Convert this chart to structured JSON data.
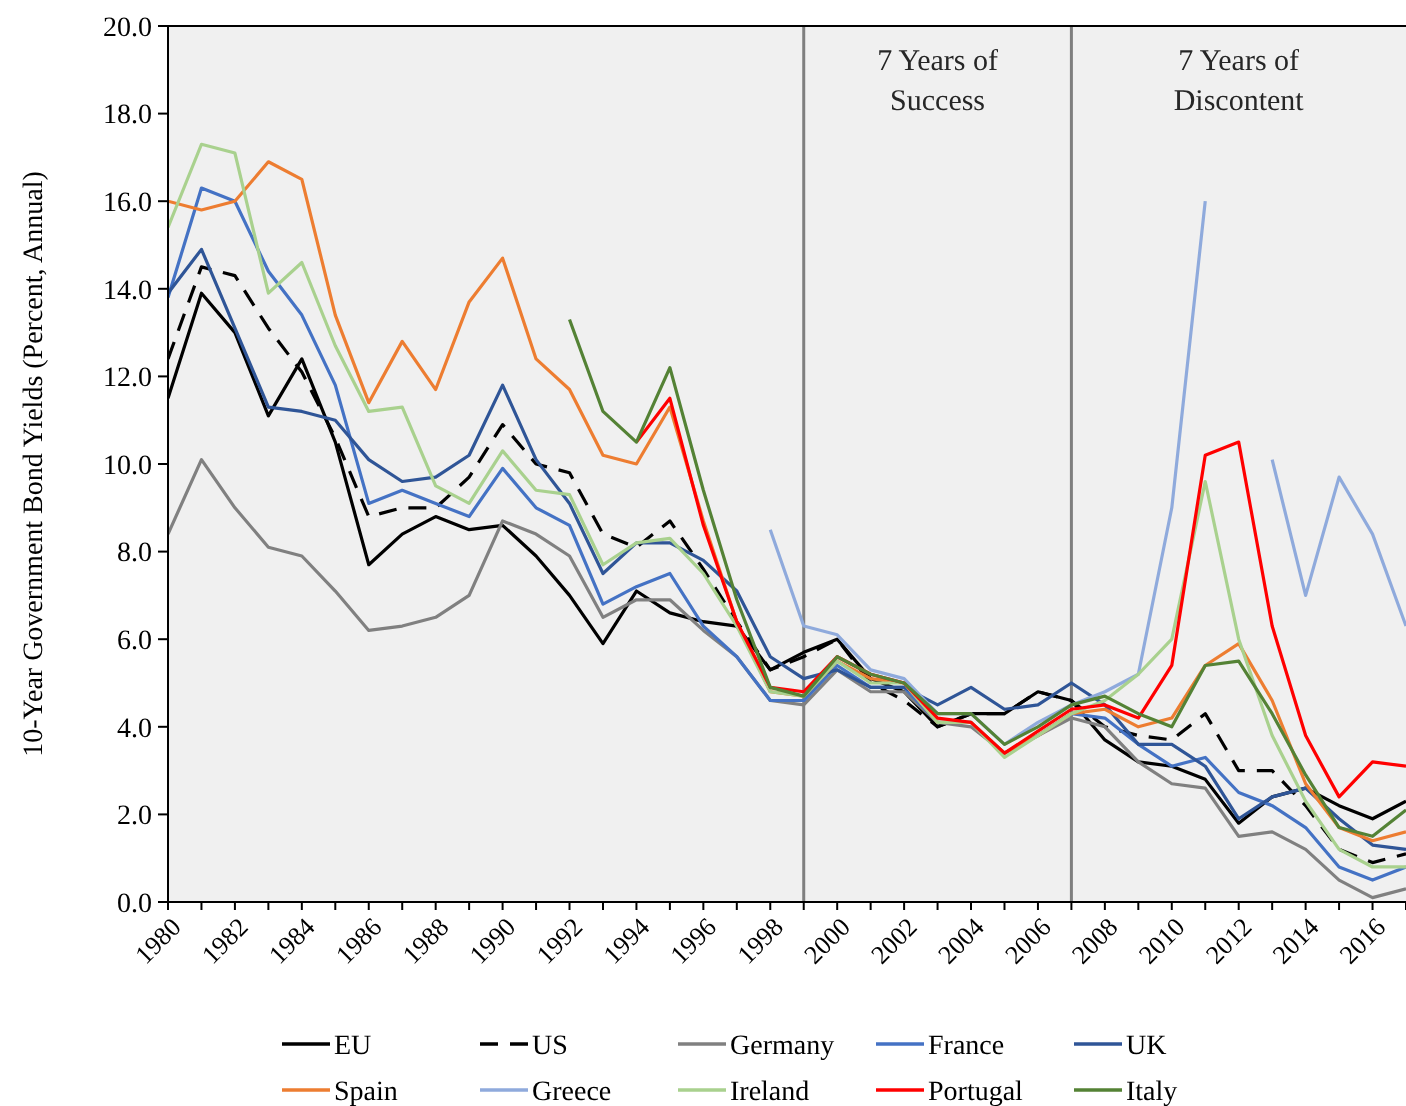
{
  "chart_data": {
    "type": "line",
    "ylabel": "10-Year Government Bond Yields (Percent, Annual)",
    "x": [
      1980,
      1981,
      1982,
      1983,
      1984,
      1985,
      1986,
      1987,
      1988,
      1989,
      1990,
      1991,
      1992,
      1993,
      1994,
      1995,
      1996,
      1997,
      1998,
      1999,
      2000,
      2001,
      2002,
      2003,
      2004,
      2005,
      2006,
      2007,
      2008,
      2009,
      2010,
      2011,
      2012,
      2013,
      2014,
      2015,
      2016,
      2017
    ],
    "xlim": [
      1980,
      2017
    ],
    "xticks": [
      1980,
      1982,
      1984,
      1986,
      1988,
      1990,
      1992,
      1994,
      1996,
      1998,
      2000,
      2002,
      2004,
      2006,
      2008,
      2010,
      2012,
      2014,
      2016
    ],
    "ylim": [
      0,
      20
    ],
    "yticks": [
      {
        "value": 0,
        "label": "0.0"
      },
      {
        "value": 2,
        "label": "2.0"
      },
      {
        "value": 4,
        "label": "4.0"
      },
      {
        "value": 6,
        "label": "6.0"
      },
      {
        "value": 8,
        "label": "8.0"
      },
      {
        "value": 10,
        "label": "10.0"
      },
      {
        "value": 12,
        "label": "12.0"
      },
      {
        "value": 14,
        "label": "14.0"
      },
      {
        "value": 16,
        "label": "16.0"
      },
      {
        "value": 18,
        "label": "18.0"
      },
      {
        "value": 20,
        "label": "20.0"
      }
    ],
    "grid": false,
    "legend": "bottom",
    "ref_lines": [
      {
        "axis": "x",
        "value": 1999,
        "color": "#7f7f7f"
      },
      {
        "axis": "x",
        "value": 2007,
        "color": "#7f7f7f"
      }
    ],
    "annotations": [
      "7 Years of Success",
      "7 Years of Discontent"
    ],
    "series": [
      {
        "name": "EU",
        "color": "#000000",
        "line_style": "solid",
        "values": [
          11.5,
          13.9,
          13.0,
          11.1,
          12.4,
          10.5,
          7.7,
          8.4,
          8.8,
          8.5,
          8.6,
          7.9,
          7.0,
          5.9,
          7.1,
          6.6,
          6.4,
          6.3,
          5.3,
          5.7,
          6.0,
          5.1,
          4.8,
          4.0,
          4.3,
          4.3,
          4.8,
          4.6,
          3.7,
          3.2,
          3.1,
          2.8,
          1.8,
          2.4,
          2.6,
          2.2,
          1.9,
          2.3
        ]
      },
      {
        "name": "US",
        "color": "#000000",
        "line_style": "dashed",
        "values": [
          12.4,
          14.5,
          14.3,
          13.1,
          12.1,
          10.6,
          8.8,
          9.0,
          9.0,
          9.7,
          10.9,
          10.0,
          9.8,
          8.4,
          8.1,
          8.7,
          7.6,
          6.4,
          5.3,
          5.6,
          6.0,
          5.0,
          4.6,
          4.0,
          4.3,
          4.3,
          4.8,
          4.6,
          4.0,
          3.8,
          3.7,
          4.3,
          3.0,
          3.0,
          2.2,
          1.2,
          0.9,
          1.1
        ]
      },
      {
        "name": "Germany",
        "color": "#808080",
        "line_style": "solid",
        "values": [
          8.4,
          10.1,
          9.0,
          8.1,
          7.9,
          7.1,
          6.2,
          6.3,
          6.5,
          7.0,
          8.7,
          8.4,
          7.9,
          6.5,
          6.9,
          6.9,
          6.2,
          5.6,
          4.6,
          4.5,
          5.3,
          4.8,
          4.8,
          4.1,
          4.0,
          3.4,
          3.8,
          4.2,
          4.0,
          3.2,
          2.7,
          2.6,
          1.5,
          1.6,
          1.2,
          0.5,
          0.1,
          0.3
        ]
      },
      {
        "name": "France",
        "color": "#4472c4",
        "line_style": "solid",
        "values": [
          13.8,
          16.3,
          16.0,
          14.4,
          13.4,
          11.8,
          9.1,
          9.4,
          9.1,
          8.8,
          9.9,
          9.0,
          8.6,
          6.8,
          7.2,
          7.5,
          6.3,
          5.6,
          4.6,
          4.6,
          5.4,
          4.9,
          4.9,
          4.1,
          4.1,
          3.4,
          3.8,
          4.3,
          4.2,
          3.6,
          3.1,
          3.3,
          2.5,
          2.2,
          1.7,
          0.8,
          0.5,
          0.8
        ]
      },
      {
        "name": "UK",
        "color": "#2f5597",
        "line_style": "solid",
        "values": [
          13.9,
          14.9,
          13.1,
          11.3,
          11.2,
          11.0,
          10.1,
          9.6,
          9.7,
          10.2,
          11.8,
          10.1,
          9.1,
          7.5,
          8.2,
          8.2,
          7.8,
          7.1,
          5.6,
          5.1,
          5.3,
          4.9,
          4.9,
          4.5,
          4.9,
          4.4,
          4.5,
          5.0,
          4.5,
          3.6,
          3.6,
          3.1,
          1.9,
          2.4,
          2.6,
          1.9,
          1.3,
          1.2
        ]
      },
      {
        "name": "Spain",
        "color": "#ed7d31",
        "line_style": "solid",
        "values": [
          16.0,
          15.8,
          16.0,
          16.9,
          16.5,
          13.4,
          11.4,
          12.8,
          11.7,
          13.7,
          14.7,
          12.4,
          11.7,
          10.2,
          10.0,
          11.3,
          8.7,
          6.4,
          4.8,
          4.7,
          5.5,
          5.1,
          5.0,
          4.1,
          4.1,
          3.4,
          3.8,
          4.3,
          4.4,
          4.0,
          4.2,
          5.4,
          5.9,
          4.6,
          2.7,
          1.7,
          1.4,
          1.6
        ]
      },
      {
        "name": "Greece",
        "color": "#8faadc",
        "line_style": "solid",
        "values": [
          null,
          null,
          null,
          null,
          null,
          null,
          null,
          null,
          null,
          null,
          null,
          null,
          null,
          null,
          null,
          null,
          null,
          null,
          8.5,
          6.3,
          6.1,
          5.3,
          5.1,
          4.3,
          4.3,
          3.6,
          4.1,
          4.5,
          4.8,
          5.2,
          9.0,
          16.0,
          null,
          10.1,
          7.0,
          9.7,
          8.4,
          6.3
        ]
      },
      {
        "name": "Ireland",
        "color": "#a9d18e",
        "line_style": "solid",
        "values": [
          15.4,
          17.3,
          17.1,
          13.9,
          14.6,
          12.7,
          11.2,
          11.3,
          9.5,
          9.1,
          10.3,
          9.4,
          9.3,
          7.7,
          8.2,
          8.3,
          7.5,
          6.3,
          4.8,
          4.7,
          5.5,
          5.0,
          5.0,
          4.1,
          4.1,
          3.3,
          3.8,
          4.3,
          4.6,
          5.2,
          6.0,
          9.6,
          6.0,
          3.8,
          2.3,
          1.2,
          0.8,
          0.8
        ]
      },
      {
        "name": "Portugal",
        "color": "#ff0000",
        "line_style": "solid",
        "values": [
          null,
          null,
          null,
          null,
          null,
          null,
          null,
          null,
          null,
          null,
          null,
          null,
          null,
          null,
          10.5,
          11.5,
          8.6,
          6.4,
          4.9,
          4.8,
          5.6,
          5.2,
          5.0,
          4.2,
          4.1,
          3.4,
          3.9,
          4.4,
          4.5,
          4.2,
          5.4,
          10.2,
          10.5,
          6.3,
          3.8,
          2.4,
          3.2,
          3.1
        ]
      },
      {
        "name": "Italy",
        "color": "#548235",
        "line_style": "solid",
        "values": [
          null,
          null,
          null,
          null,
          null,
          null,
          null,
          null,
          null,
          null,
          null,
          null,
          13.3,
          11.2,
          10.5,
          12.2,
          9.4,
          6.9,
          4.9,
          4.7,
          5.6,
          5.2,
          5.0,
          4.3,
          4.3,
          3.6,
          4.0,
          4.5,
          4.7,
          4.3,
          4.0,
          5.4,
          5.5,
          4.3,
          2.9,
          1.7,
          1.5,
          2.1
        ]
      }
    ]
  }
}
